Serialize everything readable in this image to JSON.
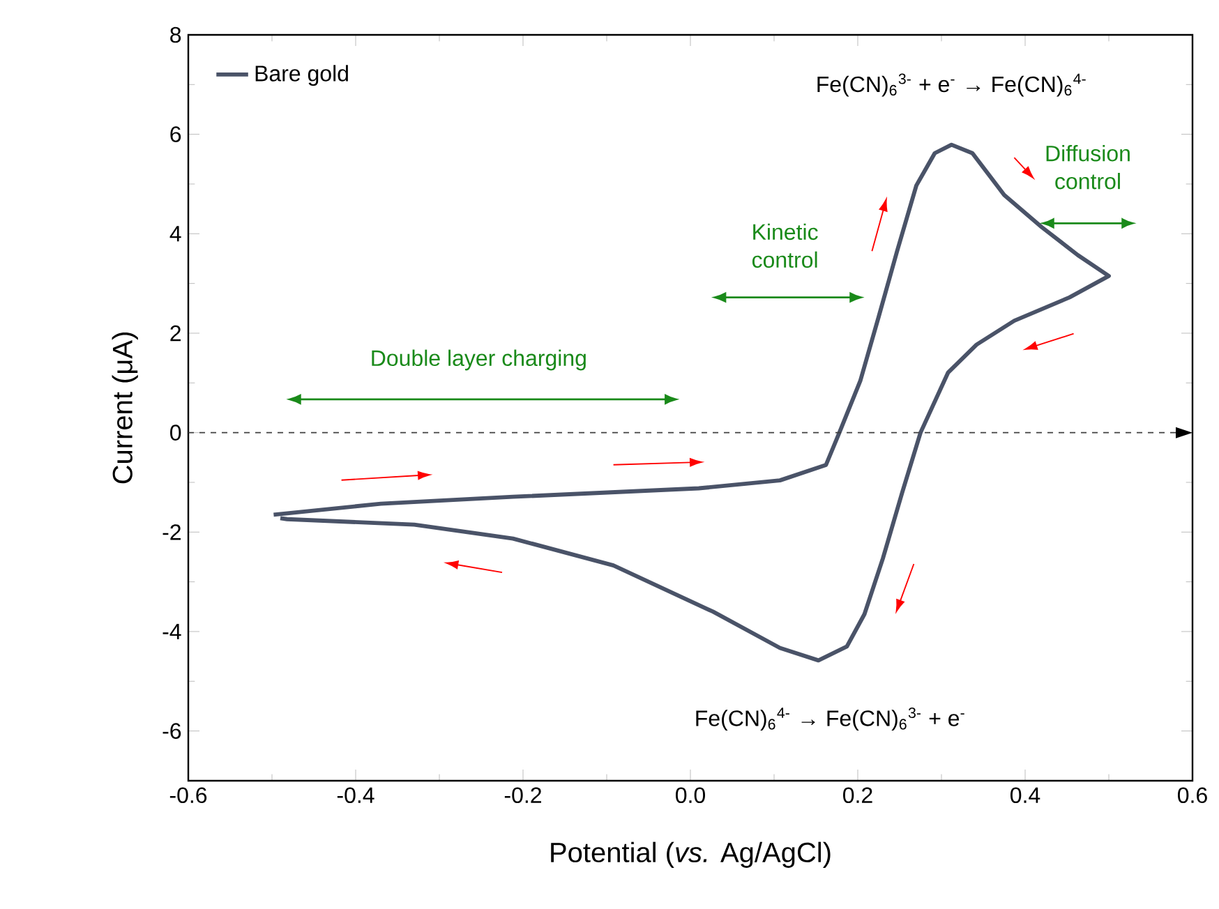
{
  "chart_data": {
    "type": "line",
    "xlabel": "Potential (*vs.* Ag/AgCl)",
    "ylabel": "Current (μA)",
    "xlim": [
      -0.6,
      0.6
    ],
    "xticks": [
      -0.6,
      -0.4,
      -0.2,
      {
        "value": 0,
        "label": "0.0"
      },
      0.2,
      0.4,
      0.6
    ],
    "ylim": [
      -7,
      8
    ],
    "yticks": [
      -6,
      -4,
      -2,
      0,
      2,
      4,
      6,
      8
    ],
    "legend": "top left",
    "grid": false,
    "marker": "none",
    "line_style": "solid",
    "series": [
      {
        "name": "Bare gold",
        "color": "#4a5368",
        "x": [
          -0.498,
          -0.37,
          -0.212,
          0.01,
          0.107,
          0.162,
          0.178,
          0.203,
          0.225,
          0.247,
          0.27,
          0.292,
          0.312,
          0.337,
          0.375,
          0.42,
          0.463,
          0.5,
          0.453,
          0.387,
          0.342,
          0.308,
          0.275,
          0.253,
          0.23,
          0.208,
          0.187,
          0.153,
          0.107,
          0.027,
          -0.092,
          -0.212,
          -0.33,
          -0.482,
          -0.49
        ],
        "values": [
          -1.65,
          -1.43,
          -1.29,
          -1.12,
          -0.96,
          -0.65,
          0,
          1.04,
          2.33,
          3.65,
          4.97,
          5.62,
          5.79,
          5.62,
          4.78,
          4.13,
          3.57,
          3.15,
          2.72,
          2.25,
          1.77,
          1.21,
          0,
          -1.21,
          -2.53,
          -3.65,
          -4.3,
          -4.58,
          -4.33,
          -3.6,
          -2.67,
          -2.13,
          -1.85,
          -1.74,
          -1.72
        ]
      }
    ],
    "ref_lines": [
      {
        "axis": "y",
        "value": 0,
        "label": null,
        "color": "#404040",
        "line_style": "dashed"
      }
    ],
    "annotations": [
      "Fe(CN)$_{6}$$^{3-}$ + e$^{-}$ → Fe(CN)$_{6}$$^{4-}$",
      "Fe(CN)$_{6}$$^{4-}$ → Fe(CN)$_{6}$$^{3-}$ + e$^{-}$",
      "Double layer charging",
      "Kinetic control",
      "Diffusion control"
    ]
  }
}
